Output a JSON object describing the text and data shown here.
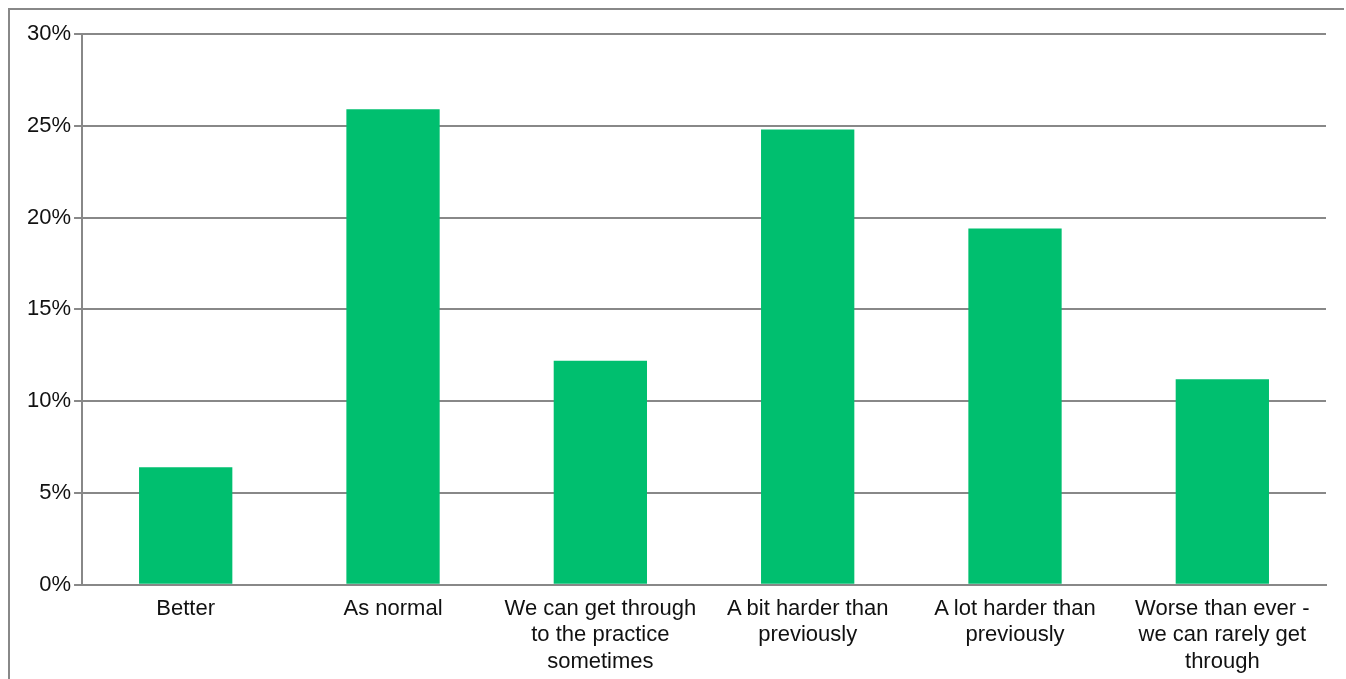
{
  "chart_data": {
    "type": "bar",
    "categories": [
      "Better",
      "As normal",
      "We can get through to the practice sometimes",
      "A bit harder than previously",
      "A lot harder than previously",
      "Worse than ever - we can rarely get through"
    ],
    "values": [
      6.4,
      25.9,
      12.2,
      24.8,
      19.4,
      11.2
    ],
    "color": "#00bf6f",
    "ylim": [
      0,
      30
    ],
    "yticks": [
      {
        "value": 0,
        "label": "0%"
      },
      {
        "value": 5,
        "label": "5%"
      },
      {
        "value": 10,
        "label": "10%"
      },
      {
        "value": 15,
        "label": "15%"
      },
      {
        "value": 20,
        "label": "20%"
      },
      {
        "value": 25,
        "label": "25%"
      },
      {
        "value": 30,
        "label": "30%"
      }
    ],
    "grid": "y",
    "legend": false
  }
}
